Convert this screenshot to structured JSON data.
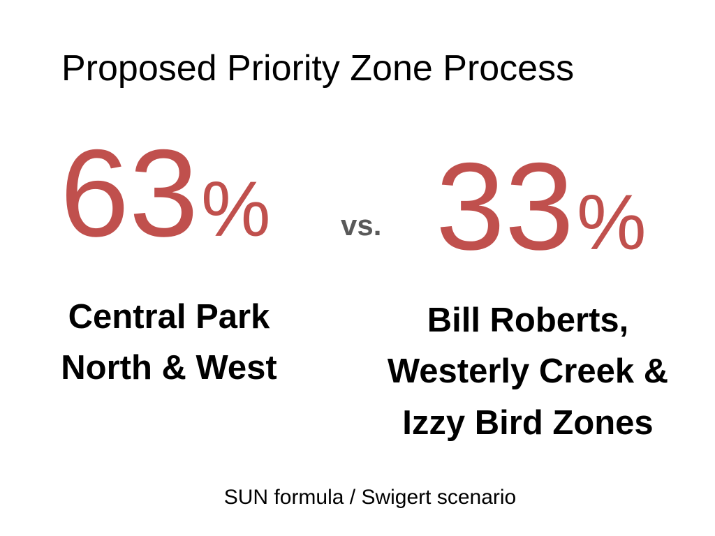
{
  "title": "Proposed Priority Zone Process",
  "left": {
    "value": 63,
    "unit": "%",
    "label": [
      "Central Park",
      "North & West"
    ]
  },
  "versus": "vs.",
  "right": {
    "value": 33,
    "unit": "%",
    "label": [
      "Bill Roberts,",
      "Westerly Creek &",
      "Izzy Bird Zones"
    ]
  },
  "footer": "SUN formula / Swigert scenario"
}
